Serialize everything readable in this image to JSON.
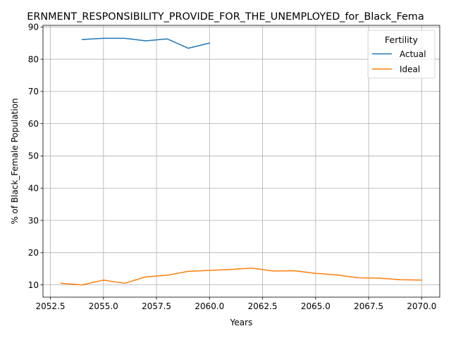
{
  "chart_data": {
    "type": "line",
    "title": "ERNMENT_RESPONSIBILITY_PROVIDE_FOR_THE_UNEMPLOYED_for_Black_Fema",
    "xlabel": "Years",
    "ylabel": "% of Black_Female Population",
    "xlim": [
      2052.15,
      2070.85
    ],
    "ylim": [
      6.2,
      90.5
    ],
    "xticks": [
      2052.5,
      2055.0,
      2057.5,
      2060.0,
      2062.5,
      2065.0,
      2067.5,
      2070.0
    ],
    "xtick_labels": [
      "2052.5",
      "2055.0",
      "2057.5",
      "2060.0",
      "2062.5",
      "2065.0",
      "2067.5",
      "2070.0"
    ],
    "yticks": [
      10,
      20,
      30,
      40,
      50,
      60,
      70,
      80,
      90
    ],
    "ytick_labels": [
      "10",
      "20",
      "30",
      "40",
      "50",
      "60",
      "70",
      "80",
      "90"
    ],
    "grid": true,
    "legend": {
      "title": "Fertility",
      "position": "top-right"
    },
    "series": [
      {
        "name": "Actual",
        "color": "#1f77b4",
        "x": [
          2054,
          2055,
          2056,
          2057,
          2058,
          2059,
          2060
        ],
        "y": [
          86.1,
          86.5,
          86.5,
          85.7,
          86.3,
          83.4,
          85.0
        ]
      },
      {
        "name": "Ideal",
        "color": "#ff7f0e",
        "x": [
          2053,
          2054,
          2055,
          2056,
          2057,
          2058,
          2059,
          2060,
          2061,
          2062,
          2063,
          2064,
          2065,
          2066,
          2067,
          2068,
          2069,
          2070
        ],
        "y": [
          10.5,
          10.0,
          11.5,
          10.5,
          12.5,
          13.0,
          14.2,
          14.5,
          14.8,
          15.2,
          14.3,
          14.4,
          13.6,
          13.1,
          12.2,
          12.1,
          11.6,
          11.5
        ]
      }
    ]
  }
}
